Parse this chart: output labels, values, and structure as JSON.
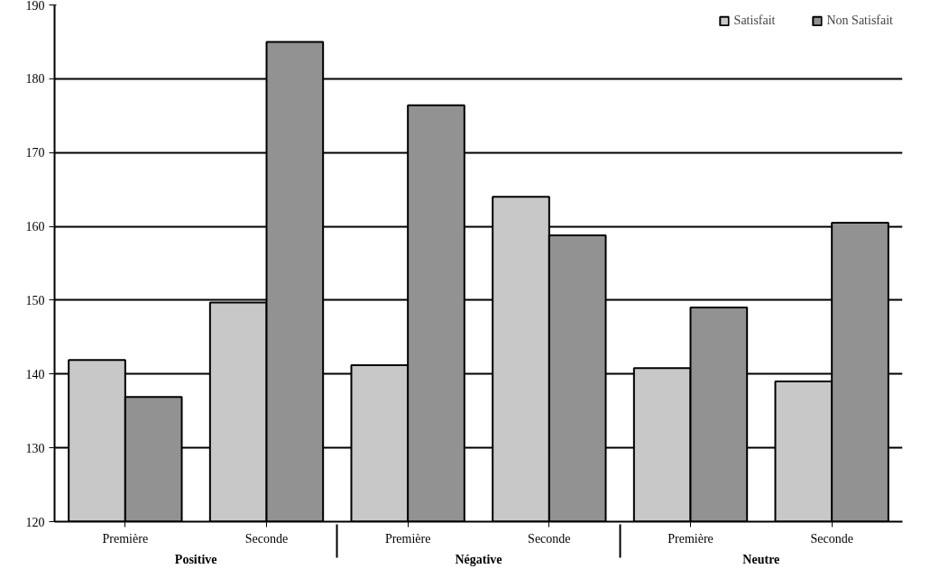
{
  "chart_data": {
    "type": "bar",
    "categories": [
      "Première",
      "Seconde",
      "Première",
      "Seconde",
      "Première",
      "Seconde"
    ],
    "annotations": [
      "Positive",
      "Négative",
      "Neutre"
    ],
    "series": [
      {
        "name": "Satisfait",
        "color": "#c8c8c8",
        "values": [
          141.9,
          149.7,
          141.2,
          164.0,
          140.8,
          139.0
        ]
      },
      {
        "name": "Non Satisfait",
        "color": "#929292",
        "values": [
          136.9,
          185.0,
          176.4,
          158.8,
          149.0,
          160.5
        ]
      }
    ],
    "ylim": [
      120,
      190
    ],
    "yticks": [
      120,
      130,
      140,
      150,
      160,
      170,
      180,
      190
    ],
    "grid": "y",
    "legend": "top right"
  }
}
